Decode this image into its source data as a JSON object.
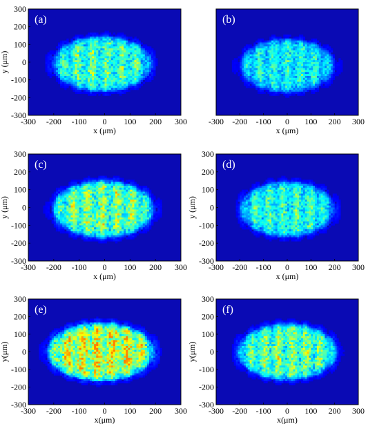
{
  "chart_data": [
    {
      "type": "heatmap",
      "panel_label": "(a)",
      "xlabel": "x (μm)",
      "ylabel": "y (μm)",
      "xlim": [
        -300,
        300
      ],
      "ylim": [
        -300,
        300
      ],
      "xticks": [
        -300,
        -200,
        -100,
        0,
        100,
        200,
        300
      ],
      "yticks": [
        300,
        200,
        100,
        0,
        -100,
        -200,
        -300
      ],
      "spot": {
        "x_center": -10,
        "y_center": -10,
        "x_halfwidth": 205,
        "y_halfwidth": 165,
        "peak_intensity": 0.55
      }
    },
    {
      "type": "heatmap",
      "panel_label": "(b)",
      "xlabel": "x (μm)",
      "ylabel": "",
      "xlim": [
        -300,
        300
      ],
      "ylim": [
        -300,
        300
      ],
      "xticks": [
        -300,
        -200,
        -100,
        0,
        100,
        200,
        300
      ],
      "yticks": [],
      "spot": {
        "x_center": 0,
        "y_center": -20,
        "x_halfwidth": 210,
        "y_halfwidth": 160,
        "peak_intensity": 0.45
      }
    },
    {
      "type": "heatmap",
      "panel_label": "(c)",
      "xlabel": "x (μm)",
      "ylabel": "y (μm)",
      "xlim": [
        -300,
        300
      ],
      "ylim": [
        -300,
        300
      ],
      "xticks": [
        -300,
        -200,
        -100,
        0,
        100,
        200,
        300
      ],
      "yticks": [
        300,
        200,
        100,
        0,
        -100,
        -200,
        -300
      ],
      "spot": {
        "x_center": -5,
        "y_center": -10,
        "x_halfwidth": 210,
        "y_halfwidth": 170,
        "peak_intensity": 0.62
      }
    },
    {
      "type": "heatmap",
      "panel_label": "(d)",
      "xlabel": "x (μm)",
      "ylabel": "y (μm)",
      "xlim": [
        -300,
        300
      ],
      "ylim": [
        -300,
        300
      ],
      "xticks": [
        -300,
        -200,
        -100,
        0,
        100,
        200,
        300
      ],
      "yticks": [
        300,
        200,
        100,
        0,
        -100,
        -200,
        -300
      ],
      "spot": {
        "x_center": 0,
        "y_center": -10,
        "x_halfwidth": 210,
        "y_halfwidth": 165,
        "peak_intensity": 0.5
      }
    },
    {
      "type": "heatmap",
      "panel_label": "(e)",
      "xlabel": "x(μm)",
      "ylabel": "y(μm)",
      "xlim": [
        -300,
        300
      ],
      "ylim": [
        -300,
        300
      ],
      "xticks": [
        -300,
        -200,
        -100,
        0,
        100,
        200,
        300
      ],
      "yticks": [
        300,
        200,
        100,
        0,
        -100,
        -200,
        -300
      ],
      "spot": {
        "x_center": -15,
        "y_center": 0,
        "x_halfwidth": 220,
        "y_halfwidth": 175,
        "peak_intensity": 0.78
      }
    },
    {
      "type": "heatmap",
      "panel_label": "(f)",
      "xlabel": "x(μm)",
      "ylabel": "y(μm)",
      "xlim": [
        -300,
        300
      ],
      "ylim": [
        -300,
        300
      ],
      "xticks": [
        -300,
        -200,
        -100,
        0,
        100,
        200,
        300
      ],
      "yticks": [
        300,
        200,
        100,
        0,
        -100,
        -200,
        -300
      ],
      "spot": {
        "x_center": 0,
        "y_center": 0,
        "x_halfwidth": 220,
        "y_halfwidth": 170,
        "peak_intensity": 0.6
      }
    }
  ],
  "colors": {
    "background_field": "#0a0ab4",
    "colormap": [
      "#00008f",
      "#0000ff",
      "#0080ff",
      "#00ffff",
      "#80ff80",
      "#ffff00",
      "#ff8000"
    ]
  }
}
